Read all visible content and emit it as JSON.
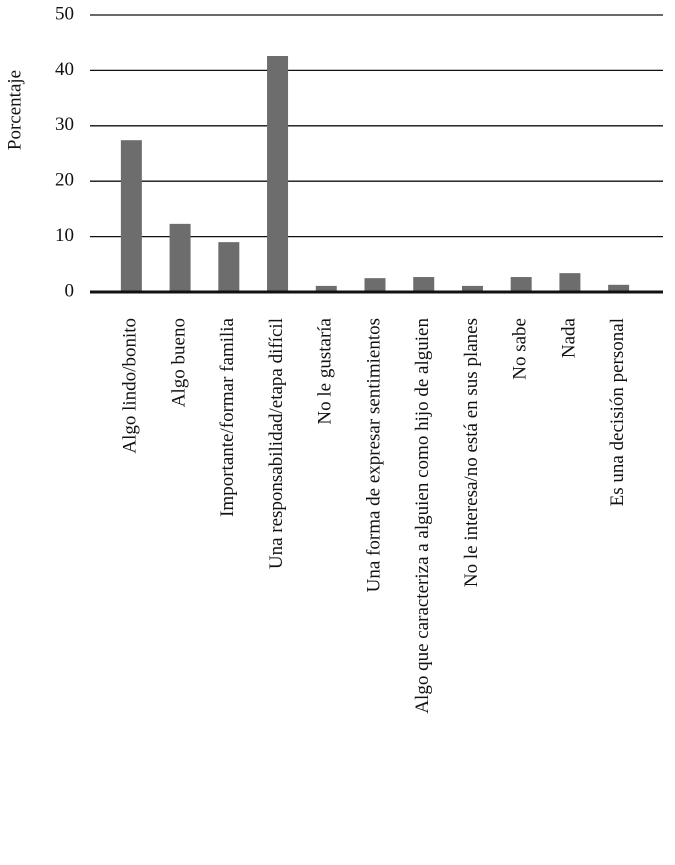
{
  "chart_data": {
    "type": "bar",
    "y_label": "Porcentaje",
    "categories": [
      "Algo lindo/bonito",
      "Algo bueno",
      "Importante/formar familia",
      "Una responsabilidad/etapa difícil",
      "No le gustaría",
      "Una forma de expresar sentimientos",
      "Algo que caracteriza a alguien como hijo de alguien",
      "No le interesa/no está en sus planes",
      "No sabe",
      "Nada",
      "Es una decisión personal"
    ],
    "values": [
      27.4,
      12.3,
      9.0,
      42.6,
      1.1,
      2.5,
      2.7,
      1.1,
      2.7,
      3.4,
      1.3
    ],
    "color": "#6d6d6d",
    "ylim": [
      0,
      50
    ],
    "yticks": [
      0,
      10,
      20,
      30,
      40,
      50
    ],
    "grid": true
  }
}
